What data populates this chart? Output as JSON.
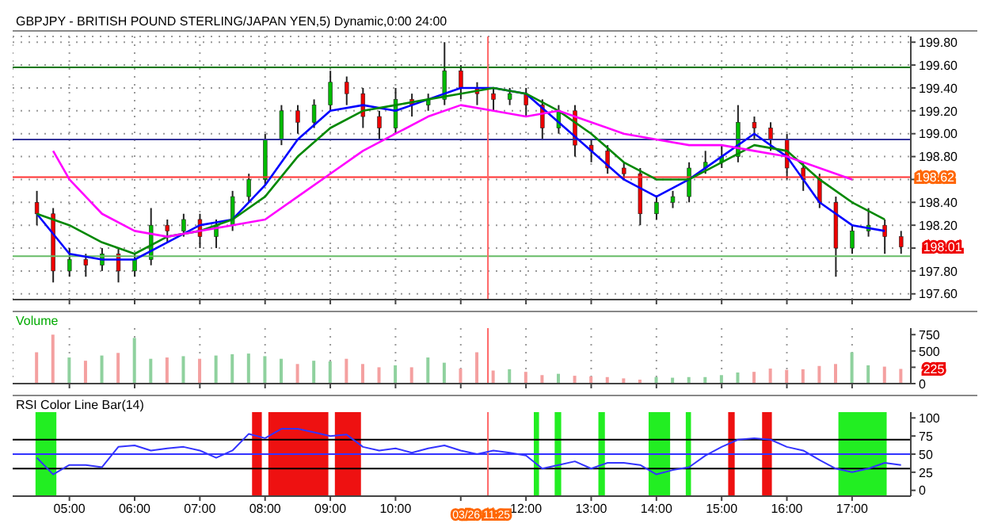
{
  "chart_data": [
    {
      "type": "candlestick",
      "title": "GBPJPY - BRITISH POUND STERLING/JAPAN YEN,5) Dynamic,0:00 24:00",
      "x": [
        4.5,
        4.75,
        5,
        5.25,
        5.5,
        5.75,
        6,
        6.25,
        6.5,
        6.75,
        7,
        7.25,
        7.5,
        7.75,
        8,
        8.25,
        8.5,
        8.75,
        9,
        9.25,
        9.5,
        9.75,
        10,
        10.25,
        10.5,
        10.75,
        11,
        11.25,
        11.5,
        11.75,
        12,
        12.25,
        12.5,
        12.75,
        13,
        13.25,
        13.5,
        13.75,
        14,
        14.25,
        14.5,
        14.75,
        15,
        15.25,
        15.5,
        15.75,
        16,
        16.25,
        16.5,
        16.75,
        17,
        17.25,
        17.5,
        17.75
      ],
      "ohlc": [
        [
          198.4,
          198.5,
          198.2,
          198.3
        ],
        [
          198.3,
          198.35,
          197.7,
          197.8
        ],
        [
          197.8,
          198.0,
          197.75,
          197.9
        ],
        [
          197.9,
          197.95,
          197.75,
          197.85
        ],
        [
          197.85,
          198.0,
          197.8,
          197.95
        ],
        [
          197.95,
          198.0,
          197.7,
          197.8
        ],
        [
          197.8,
          197.95,
          197.75,
          197.9
        ],
        [
          197.9,
          198.35,
          197.85,
          198.2
        ],
        [
          198.2,
          198.25,
          198.05,
          198.15
        ],
        [
          198.15,
          198.3,
          198.1,
          198.25
        ],
        [
          198.25,
          198.3,
          198.0,
          198.1
        ],
        [
          198.1,
          198.25,
          198.0,
          198.2
        ],
        [
          198.2,
          198.5,
          198.15,
          198.45
        ],
        [
          198.45,
          198.65,
          198.4,
          198.6
        ],
        [
          198.6,
          199.0,
          198.55,
          198.95
        ],
        [
          198.95,
          199.25,
          198.9,
          199.2
        ],
        [
          199.2,
          199.25,
          199.0,
          199.1
        ],
        [
          199.1,
          199.3,
          199.05,
          199.25
        ],
        [
          199.25,
          199.55,
          199.2,
          199.45
        ],
        [
          199.45,
          199.5,
          199.25,
          199.35
        ],
        [
          199.35,
          199.4,
          199.05,
          199.15
        ],
        [
          199.15,
          199.2,
          198.95,
          199.05
        ],
        [
          199.05,
          199.4,
          199.0,
          199.3
        ],
        [
          199.3,
          199.35,
          199.15,
          199.25
        ],
        [
          199.25,
          199.35,
          199.2,
          199.3
        ],
        [
          199.3,
          199.8,
          199.25,
          199.55
        ],
        [
          199.55,
          199.6,
          199.3,
          199.4
        ],
        [
          199.4,
          199.45,
          199.25,
          199.35
        ],
        [
          199.35,
          199.4,
          199.2,
          199.3
        ],
        [
          199.3,
          199.4,
          199.25,
          199.35
        ],
        [
          199.35,
          199.4,
          199.15,
          199.25
        ],
        [
          199.25,
          199.3,
          198.95,
          199.05
        ],
        [
          199.05,
          199.25,
          199.0,
          199.2
        ],
        [
          199.2,
          199.25,
          198.8,
          198.9
        ],
        [
          198.9,
          198.95,
          198.75,
          198.85
        ],
        [
          198.85,
          198.9,
          198.65,
          198.7
        ],
        [
          198.7,
          198.75,
          198.6,
          198.65
        ],
        [
          198.65,
          198.7,
          198.2,
          198.3
        ],
        [
          198.3,
          198.45,
          198.25,
          198.4
        ],
        [
          198.4,
          198.5,
          198.35,
          198.45
        ],
        [
          198.45,
          198.75,
          198.4,
          198.7
        ],
        [
          198.7,
          198.85,
          198.65,
          198.75
        ],
        [
          198.75,
          198.9,
          198.7,
          198.8
        ],
        [
          198.8,
          199.25,
          198.75,
          199.1
        ],
        [
          199.1,
          199.15,
          198.95,
          199.05
        ],
        [
          199.05,
          199.1,
          198.85,
          198.95
        ],
        [
          198.95,
          199.0,
          198.6,
          198.7
        ],
        [
          198.7,
          198.75,
          198.5,
          198.6
        ],
        [
          198.6,
          198.65,
          198.35,
          198.4
        ],
        [
          198.4,
          198.45,
          197.75,
          198.0
        ],
        [
          198.0,
          198.2,
          197.95,
          198.15
        ],
        [
          198.15,
          198.35,
          198.1,
          198.2
        ],
        [
          198.2,
          198.25,
          197.95,
          198.1
        ],
        [
          198.1,
          198.15,
          197.95,
          198.01
        ]
      ],
      "series": [
        {
          "type": "line",
          "color": "#0000ff",
          "x": [
            4.5,
            5,
            5.5,
            6,
            6.5,
            7,
            7.5,
            8,
            8.5,
            9,
            9.5,
            10,
            10.5,
            11,
            11.5,
            12,
            12.5,
            13,
            13.5,
            14,
            14.5,
            15,
            15.5,
            16,
            16.5,
            17,
            17.5
          ],
          "values": [
            198.3,
            197.95,
            197.9,
            197.9,
            198.05,
            198.2,
            198.25,
            198.55,
            198.95,
            199.2,
            199.25,
            199.2,
            199.3,
            199.4,
            199.4,
            199.35,
            199.1,
            198.85,
            198.6,
            198.45,
            198.6,
            198.8,
            199.0,
            198.8,
            198.4,
            198.2,
            198.15
          ]
        },
        {
          "type": "line",
          "color": "#008800",
          "x": [
            4.5,
            5,
            5.5,
            6,
            6.5,
            7,
            7.5,
            8,
            8.5,
            9,
            9.5,
            10,
            10.5,
            11,
            11.5,
            12,
            12.5,
            13,
            13.5,
            14,
            14.5,
            15,
            15.5,
            16,
            16.5,
            17,
            17.5
          ],
          "values": [
            198.3,
            198.2,
            198.05,
            197.95,
            198.1,
            198.15,
            198.25,
            198.45,
            198.8,
            199.05,
            199.2,
            199.25,
            199.3,
            199.35,
            199.4,
            199.35,
            199.2,
            199.0,
            198.75,
            198.6,
            198.6,
            198.75,
            198.9,
            198.85,
            198.6,
            198.4,
            198.25
          ]
        },
        {
          "type": "line",
          "color": "#ff00ff",
          "x": [
            4.75,
            5,
            5.5,
            6,
            6.5,
            7,
            7.5,
            8,
            8.5,
            9,
            9.5,
            10,
            10.5,
            11,
            11.5,
            12,
            12.5,
            13,
            13.5,
            14,
            14.5,
            15,
            15.5,
            16,
            16.5,
            17
          ],
          "values": [
            198.85,
            198.6,
            198.3,
            198.15,
            198.1,
            198.15,
            198.2,
            198.25,
            198.45,
            198.65,
            198.85,
            199.0,
            199.15,
            199.25,
            199.2,
            199.15,
            199.2,
            199.1,
            199.0,
            198.95,
            198.9,
            198.9,
            198.85,
            198.8,
            198.7,
            198.6
          ]
        }
      ],
      "xlim": [
        4.13,
        17.9
      ],
      "ylim": [
        197.55,
        199.85
      ],
      "yticks": [
        {
          "value": 197.6,
          "label": "197.60"
        },
        {
          "value": 197.8,
          "label": "197.80"
        },
        {
          "value": 198.0,
          "label": null
        },
        {
          "value": 198.2,
          "label": "198.20"
        },
        {
          "value": 198.4,
          "label": "198.40"
        },
        {
          "value": 198.6,
          "label": null
        },
        {
          "value": 198.8,
          "label": "198.80"
        },
        {
          "value": 199.0,
          "label": "199.00"
        },
        {
          "value": 199.2,
          "label": "199.20"
        },
        {
          "value": 199.4,
          "label": "199.40"
        },
        {
          "value": 199.6,
          "label": "199.60"
        },
        {
          "value": 199.8,
          "label": "199.80"
        }
      ],
      "xticks": [
        5,
        6,
        7,
        8,
        9,
        10,
        11,
        12,
        13,
        14,
        15,
        16,
        17
      ],
      "tick_labels": "y",
      "grid": true,
      "ref_lines": [
        {
          "axis": "y",
          "value": 199.58,
          "color": "#007700"
        },
        {
          "axis": "y",
          "value": 198.95,
          "color": "#333399"
        },
        {
          "axis": "y",
          "value": 198.62,
          "color": "#ff3333",
          "label": "198.62"
        },
        {
          "axis": "y",
          "value": 197.93,
          "color": "#66bb66"
        },
        {
          "axis": "x",
          "value": 11.4167,
          "color": "#ff6666"
        }
      ],
      "annotations": [
        {
          "text": "198.01",
          "x": 17.75,
          "y": 198.01
        }
      ]
    },
    {
      "type": "bar",
      "title": "Volume",
      "x": [
        4.5,
        4.75,
        5,
        5.25,
        5.5,
        5.75,
        6,
        6.25,
        6.5,
        6.75,
        7,
        7.25,
        7.5,
        7.75,
        8,
        8.25,
        8.5,
        8.75,
        9,
        9.25,
        9.5,
        9.75,
        10,
        10.25,
        10.5,
        10.75,
        11,
        11.25,
        11.5,
        11.75,
        12,
        12.25,
        12.5,
        12.75,
        13,
        13.25,
        13.5,
        13.75,
        14,
        14.25,
        14.5,
        14.75,
        15,
        15.25,
        15.5,
        15.75,
        16,
        16.25,
        16.5,
        16.75,
        17,
        17.25,
        17.5,
        17.75
      ],
      "values": [
        480,
        750,
        400,
        350,
        430,
        470,
        700,
        380,
        400,
        420,
        380,
        430,
        450,
        460,
        420,
        380,
        300,
        350,
        340,
        380,
        300,
        250,
        280,
        250,
        400,
        320,
        230,
        480,
        200,
        220,
        180,
        130,
        150,
        120,
        110,
        100,
        80,
        60,
        100,
        90,
        100,
        100,
        130,
        170,
        180,
        230,
        210,
        220,
        270,
        300,
        480,
        280,
        260,
        225
      ],
      "colors": [
        "#f4a0a0",
        "#f4a0a0",
        "#8fd19e",
        "#f4a0a0",
        "#8fd19e",
        "#f4a0a0",
        "#8fd19e",
        "#8fd19e",
        "#f4a0a0",
        "#8fd19e",
        "#f4a0a0",
        "#8fd19e",
        "#8fd19e",
        "#8fd19e",
        "#8fd19e",
        "#8fd19e",
        "#f4a0a0",
        "#8fd19e",
        "#8fd19e",
        "#f4a0a0",
        "#f4a0a0",
        "#f4a0a0",
        "#8fd19e",
        "#f4a0a0",
        "#8fd19e",
        "#8fd19e",
        "#f4a0a0",
        "#f4a0a0",
        "#f4a0a0",
        "#8fd19e",
        "#f4a0a0",
        "#f4a0a0",
        "#8fd19e",
        "#f4a0a0",
        "#f4a0a0",
        "#f4a0a0",
        "#f4a0a0",
        "#f4a0a0",
        "#8fd19e",
        "#8fd19e",
        "#8fd19e",
        "#8fd19e",
        "#8fd19e",
        "#8fd19e",
        "#f4a0a0",
        "#f4a0a0",
        "#f4a0a0",
        "#f4a0a0",
        "#f4a0a0",
        "#f4a0a0",
        "#8fd19e",
        "#8fd19e",
        "#f4a0a0",
        "#f4a0a0"
      ],
      "xlim": [
        4.13,
        17.9
      ],
      "ylim": [
        0,
        850
      ],
      "yticks": [
        0,
        {
          "value": 250,
          "label": null
        },
        500,
        750
      ],
      "xticks": [
        5,
        6,
        7,
        8,
        9,
        10,
        11,
        12,
        13,
        14,
        15,
        16,
        17
      ],
      "tick_labels": "y",
      "grid": "x",
      "ref_lines": [
        {
          "axis": "x",
          "value": 11.4167,
          "color": "#ff6666"
        }
      ],
      "annotations": [
        {
          "text": "225",
          "x": 17.75,
          "y": 225
        }
      ]
    },
    {
      "type": "line",
      "title": "RSI Color Line Bar(14)",
      "x": [
        4.5,
        4.75,
        5,
        5.25,
        5.5,
        5.75,
        6,
        6.25,
        6.5,
        6.75,
        7,
        7.25,
        7.5,
        7.75,
        8,
        8.25,
        8.5,
        8.75,
        9,
        9.25,
        9.5,
        9.75,
        10,
        10.25,
        10.5,
        10.75,
        11,
        11.25,
        11.5,
        11.75,
        12,
        12.25,
        12.5,
        12.75,
        13,
        13.25,
        13.5,
        13.75,
        14,
        14.25,
        14.5,
        14.75,
        15,
        15.25,
        15.5,
        15.75,
        16,
        16.25,
        16.5,
        16.75,
        17,
        17.25,
        17.5,
        17.75
      ],
      "series": [
        {
          "color": "#3333ff",
          "values": [
            45,
            22,
            35,
            35,
            32,
            60,
            62,
            55,
            58,
            60,
            55,
            45,
            55,
            78,
            72,
            85,
            85,
            80,
            75,
            77,
            60,
            55,
            58,
            52,
            58,
            62,
            55,
            50,
            55,
            52,
            48,
            30,
            35,
            40,
            30,
            38,
            38,
            35,
            22,
            28,
            32,
            48,
            60,
            70,
            72,
            70,
            60,
            55,
            42,
            30,
            25,
            30,
            38,
            35
          ]
        }
      ],
      "xlim": [
        4.13,
        17.9
      ],
      "ylim": [
        -8,
        108
      ],
      "yticks": [
        0,
        25,
        50,
        75,
        100
      ],
      "xticks": [
        {
          "value": 5,
          "label": "05:00"
        },
        {
          "value": 6,
          "label": "06:00"
        },
        {
          "value": 7,
          "label": "07:00"
        },
        {
          "value": 8,
          "label": "08:00"
        },
        {
          "value": 9,
          "label": "09:00"
        },
        {
          "value": 10,
          "label": "10:00"
        },
        {
          "value": 11,
          "label": null
        },
        {
          "value": 12,
          "label": "12:00"
        },
        {
          "value": 13,
          "label": "13:00"
        },
        {
          "value": 14,
          "label": "14:00"
        },
        {
          "value": 15,
          "label": "15:00"
        },
        {
          "value": 16,
          "label": "16:00"
        },
        {
          "value": 17,
          "label": "17:00"
        }
      ],
      "ref_lines": [
        {
          "axis": "y",
          "value": 70,
          "color": "#000000"
        },
        {
          "axis": "y",
          "value": 50,
          "color": "#3333ff"
        },
        {
          "axis": "y",
          "value": 30,
          "color": "#000000"
        },
        {
          "axis": "x",
          "value": 11.4167,
          "color": "#ff6666",
          "label": "03/26 11:25"
        }
      ],
      "bands": [
        {
          "axis": "x",
          "from": 4.48,
          "to": 4.8,
          "color": "#22ee22"
        },
        {
          "axis": "x",
          "from": 7.8,
          "to": 7.95,
          "color": "#ee1111"
        },
        {
          "axis": "x",
          "from": 8.05,
          "to": 8.97,
          "color": "#ee1111"
        },
        {
          "axis": "x",
          "from": 9.07,
          "to": 9.47,
          "color": "#ee1111"
        },
        {
          "axis": "x",
          "from": 12.12,
          "to": 12.2,
          "color": "#22ee22"
        },
        {
          "axis": "x",
          "from": 12.44,
          "to": 12.54,
          "color": "#22ee22"
        },
        {
          "axis": "x",
          "from": 13.11,
          "to": 13.21,
          "color": "#22ee22"
        },
        {
          "axis": "x",
          "from": 13.88,
          "to": 14.21,
          "color": "#22ee22"
        },
        {
          "axis": "x",
          "from": 14.45,
          "to": 14.53,
          "color": "#22ee22"
        },
        {
          "axis": "x",
          "from": 15.1,
          "to": 15.2,
          "color": "#ee1111"
        },
        {
          "axis": "x",
          "from": 15.62,
          "to": 15.77,
          "color": "#ee1111"
        },
        {
          "axis": "x",
          "from": 16.79,
          "to": 17.53,
          "color": "#22ee22"
        }
      ]
    }
  ]
}
